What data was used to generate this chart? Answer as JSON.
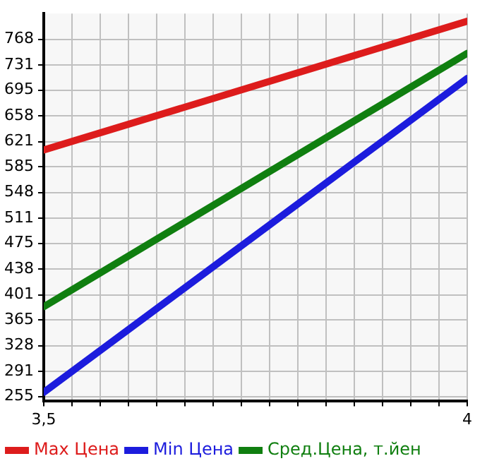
{
  "chart_data": {
    "type": "line",
    "x": [
      3.5,
      4
    ],
    "series": [
      {
        "name": "Max Цена",
        "color": "#dd1c1c",
        "values": [
          609,
          794
        ]
      },
      {
        "name": "Min Цена",
        "color": "#1c1cdd",
        "values": [
          261,
          712
        ]
      },
      {
        "name": "Сред.Цена, т.йен",
        "color": "#107f10",
        "values": [
          384,
          748
        ]
      }
    ],
    "xlim": [
      3.5,
      4
    ],
    "xticks": [
      {
        "value": 3.5,
        "label": "3,5"
      },
      {
        "value": 3.5333,
        "label": null
      },
      {
        "value": 3.5667,
        "label": null
      },
      {
        "value": 3.6,
        "label": null
      },
      {
        "value": 3.6333,
        "label": null
      },
      {
        "value": 3.6667,
        "label": null
      },
      {
        "value": 3.7,
        "label": null
      },
      {
        "value": 3.7333,
        "label": null
      },
      {
        "value": 3.7667,
        "label": null
      },
      {
        "value": 3.8,
        "label": null
      },
      {
        "value": 3.8333,
        "label": null
      },
      {
        "value": 3.8667,
        "label": null
      },
      {
        "value": 3.9,
        "label": null
      },
      {
        "value": 3.9333,
        "label": null
      },
      {
        "value": 3.9667,
        "label": null
      },
      {
        "value": 4,
        "label": "4"
      }
    ],
    "ylim": [
      249,
      805
    ],
    "yticks": [
      255,
      291,
      328,
      365,
      401,
      438,
      475,
      511,
      548,
      585,
      621,
      658,
      695,
      731,
      768
    ],
    "grid": true,
    "legend": "bottom",
    "marker": "none",
    "line_style": "solid"
  }
}
